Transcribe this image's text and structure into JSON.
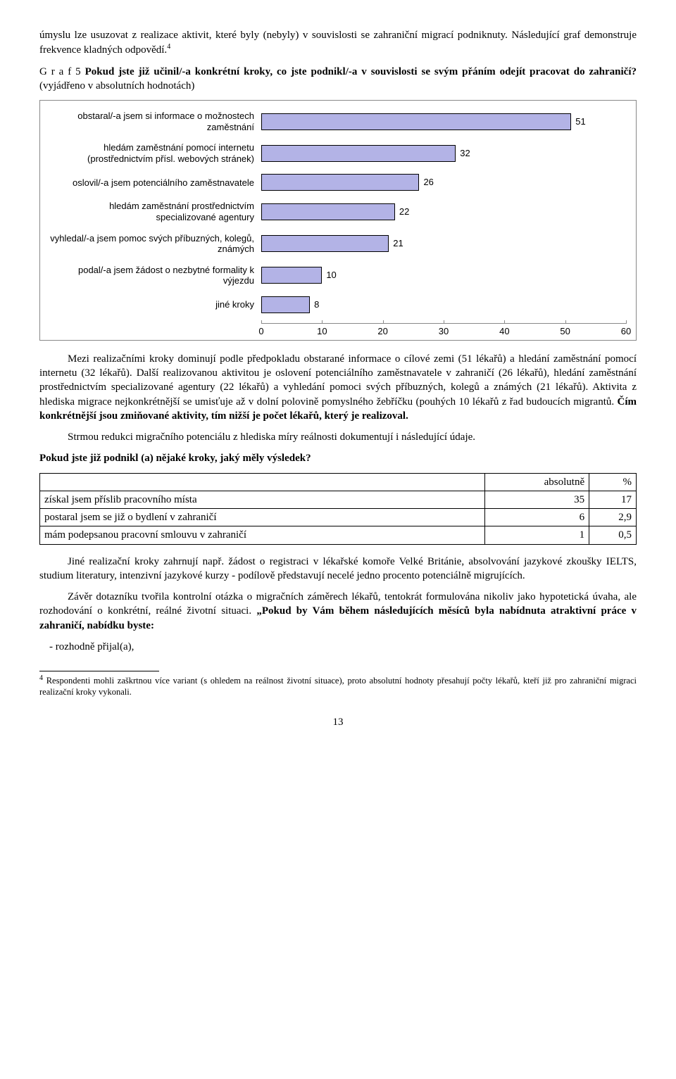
{
  "para1": "úmyslu lze usuzovat z realizace aktivit, které byly (nebyly) v souvislosti se zahraniční migrací podniknuty. Následující graf demonstruje frekvence kladných odpovědí.",
  "para1_sup": "4",
  "chart_title_prefix": "G r a f  5  ",
  "chart_title_bold": "Pokud jste již učinil/-a konkrétní kroky, co jste podnikl/-a v souvislosti se svým přáním odejít pracovat do zahraničí?",
  "chart_title_suffix": " (vyjádřeno v absolutních hodnotách)",
  "chart": {
    "type": "bar-horizontal",
    "bar_color": "#b3b3e6",
    "border_color": "#000000",
    "xmax": 60,
    "xticks": [
      0,
      10,
      20,
      30,
      40,
      50,
      60
    ],
    "label_fontsize": 13,
    "rows": [
      {
        "label": "obstaral/-a jsem si informace o možnostech zaměstnání",
        "value": 51
      },
      {
        "label": "hledám zaměstnání pomocí internetu (prostřednictvím přísl. webových stránek)",
        "value": 32
      },
      {
        "label": "oslovil/-a jsem potenciálního zaměstnavatele",
        "value": 26
      },
      {
        "label": "hledám zaměstnání prostřednictvím specializované agentury",
        "value": 22
      },
      {
        "label": "vyhledal/-a jsem pomoc svých příbuzných, kolegů, známých",
        "value": 21
      },
      {
        "label": "podal/-a jsem žádost o nezbytné formality k výjezdu",
        "value": 10
      },
      {
        "label": "jiné kroky",
        "value": 8
      }
    ]
  },
  "para2a": "Mezi realizačními kroky dominují podle předpokladu obstarané informace o cílové zemi (51 lékařů) a hledání zaměstnání pomocí internetu (32 lékařů). Další realizovanou aktivitou je oslovení potenciálního zaměstnavatele v zahraničí (26 lékařů), hledání zaměstnání prostřednictvím specializované agentury (22 lékařů) a vyhledání pomoci svých příbuzných, kolegů a známých (21 lékařů). Aktivita z hlediska migrace nejkonkrétnější se umisťuje až v dolní polovině pomyslného žebříčku (pouhých 10 lékařů z řad budoucích migrantů. ",
  "para2b": "Čím konkrétnější jsou zmiňované aktivity, tím nižší je počet lékařů, který je realizoval.",
  "para3": "Strmou redukci migračního potenciálu z hlediska míry reálnosti dokumentují i následující údaje.",
  "table_q": "Pokud jste již podnikl (a) nějaké kroky, jaký měly výsledek?",
  "table": {
    "columns": [
      "",
      "absolutně",
      "%"
    ],
    "rows": [
      [
        "získal jsem příslib pracovního místa",
        "35",
        "17"
      ],
      [
        "postaral jsem se již o bydlení v zahraničí",
        "6",
        "2,9"
      ],
      [
        "mám podepsanou pracovní smlouvu v zahraničí",
        "1",
        "0,5"
      ]
    ]
  },
  "para4": "Jiné realizační kroky zahrnují např. žádost o registraci v lékařské komoře Velké Británie, absolvování jazykové zkoušky IELTS, studium literatury, intenzivní jazykové kurzy - podílově představují necelé jedno procento potenciálně migrujících.",
  "para5a": "Závěr dotazníku tvořila kontrolní otázka o migračních záměrech lékařů, tentokrát formulována nikoliv jako hypotetická úvaha, ale rozhodování o konkrétní, reálné životní situaci. ",
  "para5b": "„Pokud by Vám během následujících měsíců byla nabídnuta atraktivní práce v zahraničí, nabídku byste:",
  "bullet1": "rozhodně přijal(a),",
  "footnote_num": "4",
  "footnote": " Respondenti mohli zaškrtnou více variant (s ohledem na reálnost životní situace), proto absolutní hodnoty přesahují počty lékařů, kteří již pro zahraniční migraci realizační kroky vykonali.",
  "pagenum": "13"
}
